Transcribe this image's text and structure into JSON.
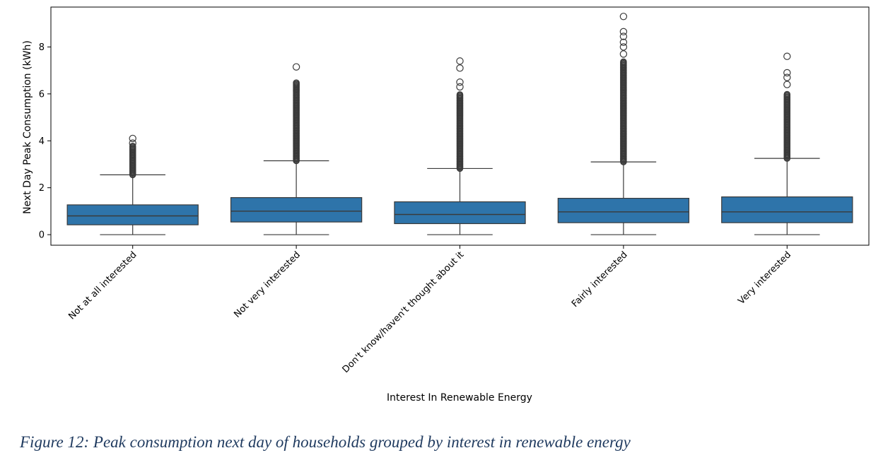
{
  "chart_data": {
    "type": "box",
    "xlabel": "Interest In Renewable Energy",
    "ylabel": "Next Day Peak Consumption (kWh)",
    "ylim": [
      -0.45,
      9.7
    ],
    "yticks": [
      0,
      2,
      4,
      6,
      8
    ],
    "grid": false,
    "box_color": "#2e74aa",
    "line_color": "#3a3a3a",
    "categories": [
      "Not at all interested",
      "Not very interested",
      "Don't know/haven't thought about it",
      "Fairly interested",
      "Very interested"
    ],
    "boxes": [
      {
        "whisker_low": 0.0,
        "q1": 0.42,
        "median": 0.8,
        "q3": 1.27,
        "whisker_high": 2.55,
        "outliers_dense_range": [
          2.55,
          3.8
        ],
        "outliers": [
          3.9,
          4.1
        ]
      },
      {
        "whisker_low": 0.0,
        "q1": 0.54,
        "median": 1.0,
        "q3": 1.58,
        "whisker_high": 3.15,
        "outliers_dense_range": [
          3.15,
          6.5
        ],
        "outliers": [
          7.15
        ]
      },
      {
        "whisker_low": 0.0,
        "q1": 0.47,
        "median": 0.86,
        "q3": 1.4,
        "whisker_high": 2.82,
        "outliers_dense_range": [
          2.82,
          6.0
        ],
        "outliers": [
          6.3,
          6.5,
          7.1,
          7.4
        ]
      },
      {
        "whisker_low": 0.0,
        "q1": 0.51,
        "median": 0.97,
        "q3": 1.55,
        "whisker_high": 3.1,
        "outliers_dense_range": [
          3.1,
          7.4
        ],
        "outliers": [
          7.7,
          8.0,
          8.2,
          8.45,
          8.65,
          9.3
        ]
      },
      {
        "whisker_low": 0.0,
        "q1": 0.51,
        "median": 0.97,
        "q3": 1.61,
        "whisker_high": 3.25,
        "outliers_dense_range": [
          3.25,
          6.0
        ],
        "outliers": [
          6.4,
          6.7,
          6.9,
          7.6
        ]
      }
    ]
  },
  "figure": {
    "caption": "Figure 12: Peak consumption next day of households grouped by interest in renewable energy"
  }
}
